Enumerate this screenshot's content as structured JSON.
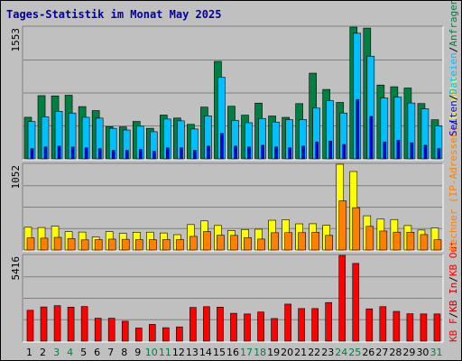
{
  "chart_data": {
    "type": "bar",
    "title": "Tages-Statistik im Monat May 2025",
    "colors": {
      "anfragen": "#008040",
      "dateien": "#00c0ff",
      "seiten": "#0000ff",
      "rechner": "#ff8000",
      "besuche": "#ffff00",
      "kbin": "#c00000",
      "kbout": "#ff0000",
      "weekend_label": "#008040"
    },
    "days": [
      "1",
      "2",
      "3",
      "4",
      "5",
      "6",
      "7",
      "8",
      "9",
      "10",
      "11",
      "12",
      "13",
      "14",
      "15",
      "16",
      "17",
      "18",
      "19",
      "20",
      "21",
      "22",
      "23",
      "24",
      "25",
      "26",
      "27",
      "28",
      "29",
      "30",
      "31"
    ],
    "weekend_days": [
      "3",
      "4",
      "10",
      "11",
      "17",
      "18",
      "24",
      "25",
      "31"
    ],
    "panels": [
      {
        "id": "requests",
        "ymax_label": "1553",
        "ylim": [
          0,
          1553
        ],
        "series": [
          {
            "key": "anfragen",
            "values": [
              490,
              745,
              742,
              750,
              616,
              569,
              380,
              377,
              441,
              360,
              516,
              481,
              407,
              610,
              1149,
              620,
              515,
              657,
              505,
              489,
              651,
              1010,
              818,
              665,
              1553,
              1541,
              870,
              850,
              835,
              652,
              461
            ]
          },
          {
            "key": "dateien",
            "values": [
              440,
              495,
              560,
              540,
              490,
              480,
              360,
              340,
              385,
              320,
              469,
              448,
              352,
              507,
              960,
              453,
              426,
              476,
              434,
              462,
              463,
              598,
              685,
              540,
              1480,
              1210,
              718,
              728,
              658,
              590,
              388
            ]
          },
          {
            "key": "seiten",
            "values": [
              120,
              140,
              150,
              140,
              130,
              120,
              100,
              100,
              110,
              90,
              130,
              130,
              100,
              150,
              300,
              150,
              140,
              160,
              140,
              130,
              150,
              200,
              210,
              170,
              700,
              500,
              200,
              220,
              190,
              160,
              120
            ]
          }
        ]
      },
      {
        "id": "visits",
        "ymax_label": "1052",
        "ylim": [
          0,
          1052
        ],
        "series": [
          {
            "key": "besuche",
            "values": [
              279,
              276,
              292,
              225,
              220,
              160,
              225,
              204,
              218,
              219,
              209,
              188,
              312,
              357,
              301,
              239,
              252,
              255,
              365,
              372,
              321,
              322,
              303,
              1052,
              963,
              420,
              379,
              374,
              300,
              245,
              270
            ]
          },
          {
            "key": "rechner",
            "values": [
              149,
              145,
              155,
              140,
              124,
              127,
              133,
              131,
              127,
              127,
              129,
              128,
              167,
              226,
              181,
              179,
              152,
              134,
              212,
              213,
              213,
              217,
              179,
              603,
              519,
              290,
              233,
              219,
              218,
              189,
              126
            ]
          }
        ]
      },
      {
        "id": "kbytes",
        "ymax_label": "5416",
        "ylim": [
          0,
          5416
        ],
        "series": [
          {
            "key": "kbout",
            "values": [
              1950,
              2160,
              2240,
              2150,
              2190,
              1450,
              1450,
              1260,
              830,
              1060,
              850,
              900,
              2130,
              2180,
              2150,
              1760,
              1720,
              1840,
              1430,
              2340,
              2060,
              2060,
              2440,
              5416,
              4910,
              2040,
              2180,
              1880,
              1730,
              1720,
              1720
            ]
          }
        ]
      }
    ],
    "legend": [
      {
        "key": "anfragen",
        "text": "Anfragen"
      },
      {
        "key": "dateien",
        "text": "Dateien"
      },
      {
        "key": "seiten",
        "text": "Seiten"
      },
      {
        "key": "besuche",
        "text": "Besuche"
      },
      {
        "key": "rechner",
        "text": "Rechner (IP-Adressen)"
      },
      {
        "key": "kbout",
        "text": "KB Out"
      },
      {
        "key": "kbin",
        "text": "KB In"
      },
      {
        "key": "kbout",
        "text": "KB F"
      }
    ],
    "legend_separator": "/"
  }
}
